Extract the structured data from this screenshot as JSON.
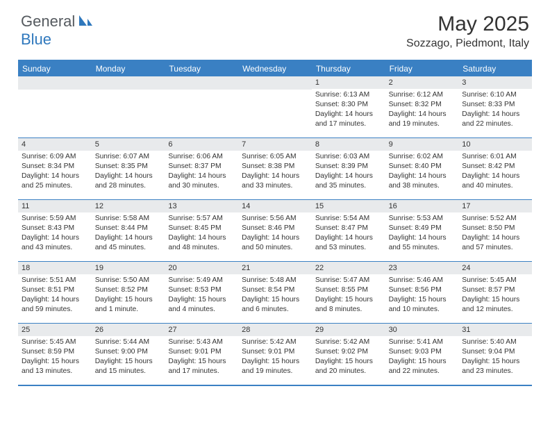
{
  "logo": {
    "text1": "General",
    "text2": "Blue"
  },
  "title": "May 2025",
  "location": "Sozzago, Piedmont, Italy",
  "header_bg": "#3a80c3",
  "daynum_bg": "#e8eaec",
  "weekdays": [
    "Sunday",
    "Monday",
    "Tuesday",
    "Wednesday",
    "Thursday",
    "Friday",
    "Saturday"
  ],
  "weeks": [
    [
      null,
      null,
      null,
      null,
      {
        "n": "1",
        "sr": "6:13 AM",
        "ss": "8:30 PM",
        "dl": "14 hours and 17 minutes."
      },
      {
        "n": "2",
        "sr": "6:12 AM",
        "ss": "8:32 PM",
        "dl": "14 hours and 19 minutes."
      },
      {
        "n": "3",
        "sr": "6:10 AM",
        "ss": "8:33 PM",
        "dl": "14 hours and 22 minutes."
      }
    ],
    [
      {
        "n": "4",
        "sr": "6:09 AM",
        "ss": "8:34 PM",
        "dl": "14 hours and 25 minutes."
      },
      {
        "n": "5",
        "sr": "6:07 AM",
        "ss": "8:35 PM",
        "dl": "14 hours and 28 minutes."
      },
      {
        "n": "6",
        "sr": "6:06 AM",
        "ss": "8:37 PM",
        "dl": "14 hours and 30 minutes."
      },
      {
        "n": "7",
        "sr": "6:05 AM",
        "ss": "8:38 PM",
        "dl": "14 hours and 33 minutes."
      },
      {
        "n": "8",
        "sr": "6:03 AM",
        "ss": "8:39 PM",
        "dl": "14 hours and 35 minutes."
      },
      {
        "n": "9",
        "sr": "6:02 AM",
        "ss": "8:40 PM",
        "dl": "14 hours and 38 minutes."
      },
      {
        "n": "10",
        "sr": "6:01 AM",
        "ss": "8:42 PM",
        "dl": "14 hours and 40 minutes."
      }
    ],
    [
      {
        "n": "11",
        "sr": "5:59 AM",
        "ss": "8:43 PM",
        "dl": "14 hours and 43 minutes."
      },
      {
        "n": "12",
        "sr": "5:58 AM",
        "ss": "8:44 PM",
        "dl": "14 hours and 45 minutes."
      },
      {
        "n": "13",
        "sr": "5:57 AM",
        "ss": "8:45 PM",
        "dl": "14 hours and 48 minutes."
      },
      {
        "n": "14",
        "sr": "5:56 AM",
        "ss": "8:46 PM",
        "dl": "14 hours and 50 minutes."
      },
      {
        "n": "15",
        "sr": "5:54 AM",
        "ss": "8:47 PM",
        "dl": "14 hours and 53 minutes."
      },
      {
        "n": "16",
        "sr": "5:53 AM",
        "ss": "8:49 PM",
        "dl": "14 hours and 55 minutes."
      },
      {
        "n": "17",
        "sr": "5:52 AM",
        "ss": "8:50 PM",
        "dl": "14 hours and 57 minutes."
      }
    ],
    [
      {
        "n": "18",
        "sr": "5:51 AM",
        "ss": "8:51 PM",
        "dl": "14 hours and 59 minutes."
      },
      {
        "n": "19",
        "sr": "5:50 AM",
        "ss": "8:52 PM",
        "dl": "15 hours and 1 minute."
      },
      {
        "n": "20",
        "sr": "5:49 AM",
        "ss": "8:53 PM",
        "dl": "15 hours and 4 minutes."
      },
      {
        "n": "21",
        "sr": "5:48 AM",
        "ss": "8:54 PM",
        "dl": "15 hours and 6 minutes."
      },
      {
        "n": "22",
        "sr": "5:47 AM",
        "ss": "8:55 PM",
        "dl": "15 hours and 8 minutes."
      },
      {
        "n": "23",
        "sr": "5:46 AM",
        "ss": "8:56 PM",
        "dl": "15 hours and 10 minutes."
      },
      {
        "n": "24",
        "sr": "5:45 AM",
        "ss": "8:57 PM",
        "dl": "15 hours and 12 minutes."
      }
    ],
    [
      {
        "n": "25",
        "sr": "5:45 AM",
        "ss": "8:59 PM",
        "dl": "15 hours and 13 minutes."
      },
      {
        "n": "26",
        "sr": "5:44 AM",
        "ss": "9:00 PM",
        "dl": "15 hours and 15 minutes."
      },
      {
        "n": "27",
        "sr": "5:43 AM",
        "ss": "9:01 PM",
        "dl": "15 hours and 17 minutes."
      },
      {
        "n": "28",
        "sr": "5:42 AM",
        "ss": "9:01 PM",
        "dl": "15 hours and 19 minutes."
      },
      {
        "n": "29",
        "sr": "5:42 AM",
        "ss": "9:02 PM",
        "dl": "15 hours and 20 minutes."
      },
      {
        "n": "30",
        "sr": "5:41 AM",
        "ss": "9:03 PM",
        "dl": "15 hours and 22 minutes."
      },
      {
        "n": "31",
        "sr": "5:40 AM",
        "ss": "9:04 PM",
        "dl": "15 hours and 23 minutes."
      }
    ]
  ],
  "labels": {
    "sunrise": "Sunrise:",
    "sunset": "Sunset:",
    "daylight": "Daylight:"
  }
}
